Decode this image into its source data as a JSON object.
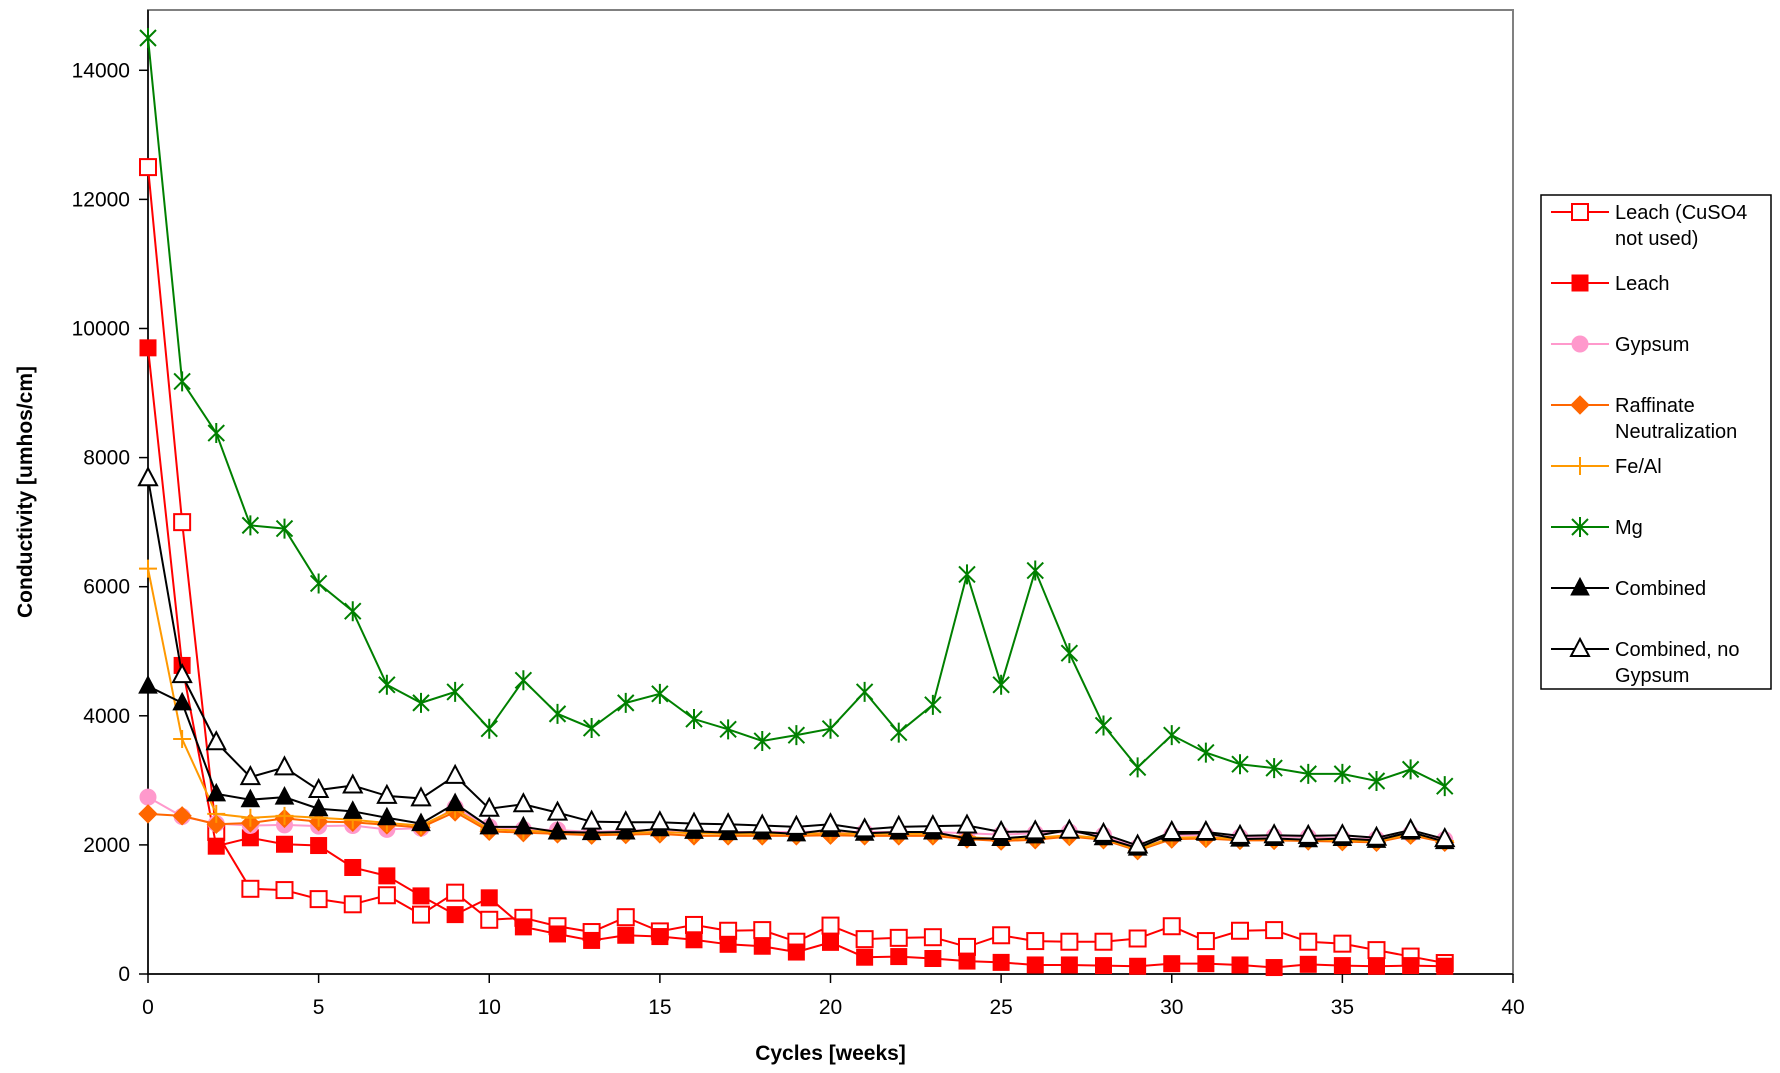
{
  "chart_data": {
    "type": "line",
    "title": "",
    "xlabel": "Cycles [weeks]",
    "ylabel": "Conductivity [umhos/cm]",
    "xlim": [
      0,
      40
    ],
    "ylim": [
      0,
      14500
    ],
    "x_ticks": [
      0,
      5,
      10,
      15,
      20,
      25,
      30,
      35,
      40
    ],
    "y_ticks": [
      0,
      2000,
      4000,
      6000,
      8000,
      10000,
      12000,
      14000
    ],
    "grid": false,
    "legend_position": "right",
    "x": [
      0,
      1,
      2,
      3,
      4,
      5,
      6,
      7,
      8,
      9,
      10,
      11,
      12,
      13,
      14,
      15,
      16,
      17,
      18,
      19,
      20,
      21,
      22,
      23,
      24,
      25,
      26,
      27,
      28,
      29,
      30,
      31,
      32,
      33,
      34,
      35,
      36,
      37,
      38
    ],
    "series": [
      {
        "name": "Leach (CuSO4 not used)",
        "color": "#ff0000",
        "marker": "square-open",
        "values": [
          12500,
          7000,
          2200,
          1320,
          1300,
          1160,
          1080,
          1220,
          920,
          1260,
          840,
          870,
          740,
          650,
          880,
          660,
          760,
          670,
          680,
          500,
          750,
          540,
          560,
          570,
          420,
          600,
          510,
          500,
          500,
          550,
          740,
          510,
          670,
          680,
          500,
          470,
          370,
          270,
          170
        ]
      },
      {
        "name": "Leach",
        "color": "#ff0000",
        "marker": "square-filled",
        "values": [
          9700,
          4780,
          1980,
          2110,
          2010,
          1990,
          1650,
          1520,
          1210,
          920,
          1180,
          730,
          620,
          520,
          600,
          580,
          530,
          460,
          430,
          340,
          490,
          260,
          270,
          240,
          200,
          180,
          140,
          140,
          130,
          120,
          160,
          160,
          140,
          100,
          150,
          130,
          120,
          130,
          120
        ]
      },
      {
        "name": "Gypsum",
        "color": "#ff99cc",
        "marker": "circle",
        "values": [
          2740,
          2440,
          2330,
          2300,
          2310,
          2290,
          2300,
          2240,
          2260,
          2580,
          2280,
          2240,
          2230,
          2200,
          2220,
          2230,
          2210,
          2200,
          2200,
          2200,
          2210,
          2200,
          2200,
          2200,
          2180,
          2160,
          2180,
          2200,
          2150,
          1960,
          2150,
          2150,
          2120,
          2130,
          2120,
          2100,
          2090,
          2170,
          2080
        ]
      },
      {
        "name": "Raffinate Neutralization",
        "color": "#ff6600",
        "marker": "diamond",
        "values": [
          2480,
          2450,
          2320,
          2340,
          2410,
          2360,
          2350,
          2310,
          2270,
          2510,
          2210,
          2190,
          2170,
          2150,
          2160,
          2170,
          2140,
          2140,
          2140,
          2140,
          2150,
          2140,
          2140,
          2140,
          2090,
          2060,
          2080,
          2130,
          2080,
          1910,
          2090,
          2100,
          2070,
          2070,
          2060,
          2050,
          2040,
          2150,
          2040
        ]
      },
      {
        "name": "Fe/Al",
        "color": "#ff9900",
        "marker": "plus",
        "values": [
          6280,
          3640,
          2480,
          2420,
          2450,
          2420,
          2390,
          2340,
          2300,
          2550,
          2240,
          2220,
          2200,
          2180,
          2190,
          2200,
          2180,
          2170,
          2170,
          2170,
          2180,
          2170,
          2170,
          2170,
          2120,
          2090,
          2110,
          2150,
          2100,
          1930,
          2110,
          2120,
          2090,
          2090,
          2080,
          2070,
          2060,
          2170,
          2060
        ]
      },
      {
        "name": "Mg",
        "color": "#008000",
        "marker": "star",
        "values": [
          14500,
          9180,
          8380,
          6950,
          6900,
          6050,
          5620,
          4480,
          4200,
          4370,
          3800,
          4550,
          4030,
          3810,
          4200,
          4340,
          3950,
          3790,
          3610,
          3700,
          3800,
          4370,
          3740,
          4170,
          6190,
          4480,
          6250,
          4970,
          3850,
          3200,
          3700,
          3430,
          3250,
          3190,
          3100,
          3100,
          2990,
          3170,
          2910
        ]
      },
      {
        "name": "Combined",
        "color": "#000000",
        "marker": "triangle-filled",
        "values": [
          4460,
          4200,
          2790,
          2700,
          2740,
          2560,
          2520,
          2420,
          2330,
          2640,
          2280,
          2280,
          2200,
          2190,
          2200,
          2250,
          2210,
          2190,
          2200,
          2170,
          2240,
          2180,
          2200,
          2200,
          2100,
          2100,
          2140,
          2230,
          2110,
          1950,
          2170,
          2180,
          2090,
          2100,
          2080,
          2100,
          2070,
          2200,
          2050
        ]
      },
      {
        "name": "Combined, no Gypsum",
        "color": "#000000",
        "marker": "triangle-open",
        "values": [
          7680,
          4630,
          3590,
          3050,
          3200,
          2850,
          2920,
          2760,
          2720,
          3070,
          2560,
          2630,
          2500,
          2360,
          2350,
          2350,
          2330,
          2320,
          2300,
          2280,
          2320,
          2240,
          2280,
          2290,
          2300,
          2200,
          2210,
          2220,
          2170,
          1990,
          2200,
          2200,
          2140,
          2150,
          2140,
          2150,
          2110,
          2230,
          2090
        ]
      }
    ]
  },
  "legend": {
    "entries": [
      {
        "lines": [
          "Leach (CuSO4",
          "not used)"
        ]
      },
      {
        "lines": [
          "Leach"
        ]
      },
      {
        "lines": [
          "Gypsum"
        ]
      },
      {
        "lines": [
          "Raffinate",
          "Neutralization"
        ]
      },
      {
        "lines": [
          "Fe/Al"
        ]
      },
      {
        "lines": [
          "Mg"
        ]
      },
      {
        "lines": [
          "Combined"
        ]
      },
      {
        "lines": [
          "Combined, no",
          "Gypsum"
        ]
      }
    ]
  }
}
